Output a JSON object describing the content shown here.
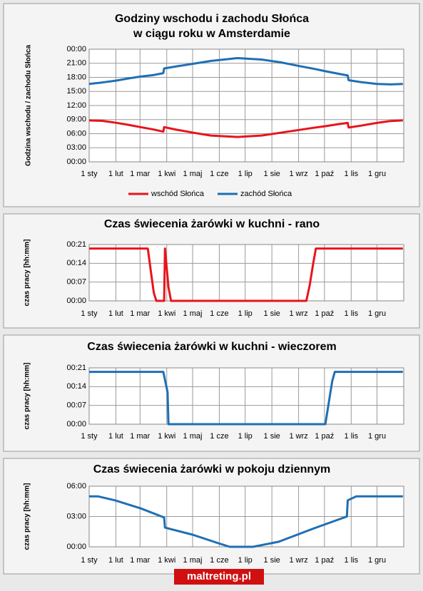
{
  "chart_data": [
    {
      "type": "line",
      "title": [
        "Godziny wschodu i zachodu Słońca",
        "w ciągu roku w Amsterdamie"
      ],
      "y_label": "Godzina wschodu  / zachodu Słońca",
      "xlim": [
        0,
        365
      ],
      "xticks": [
        {
          "value": 0,
          "label": "1 sty"
        },
        {
          "value": 31,
          "label": "1 lut"
        },
        {
          "value": 59,
          "label": "1 mar"
        },
        {
          "value": 90,
          "label": "1 kwi"
        },
        {
          "value": 120,
          "label": "1 maj"
        },
        {
          "value": 151,
          "label": "1 cze"
        },
        {
          "value": 181,
          "label": "1 lip"
        },
        {
          "value": 212,
          "label": "1 sie"
        },
        {
          "value": 243,
          "label": "1 wrz"
        },
        {
          "value": 273,
          "label": "1 paź"
        },
        {
          "value": 304,
          "label": "1 lis"
        },
        {
          "value": 334,
          "label": "1 gru"
        }
      ],
      "ylim": [
        0,
        24
      ],
      "yticks": [
        {
          "value": 0,
          "label": "00:00"
        },
        {
          "value": 3,
          "label": "03:00"
        },
        {
          "value": 6,
          "label": "06:00"
        },
        {
          "value": 9,
          "label": "09:00"
        },
        {
          "value": 12,
          "label": "12:00"
        },
        {
          "value": 15,
          "label": "15:00"
        },
        {
          "value": 18,
          "label": "18:00"
        },
        {
          "value": 21,
          "label": "21:00"
        },
        {
          "value": 24,
          "label": "00:00"
        }
      ],
      "grid": true,
      "legend": "bottom",
      "series": [
        {
          "name": "wschód Słońca",
          "color": "#e8141c",
          "x": [
            0,
            15,
            31,
            45,
            59,
            75,
            86,
            87,
            100,
            121,
            141,
            172,
            200,
            222,
            244,
            260,
            274,
            290,
            300,
            301,
            315,
            334,
            350,
            364
          ],
          "values": [
            8.83,
            8.73,
            8.33,
            7.9,
            7.42,
            6.88,
            6.42,
            7.4,
            6.9,
            6.2,
            5.6,
            5.3,
            5.6,
            6.2,
            6.8,
            7.25,
            7.6,
            8.05,
            8.3,
            7.3,
            7.7,
            8.3,
            8.7,
            8.83
          ]
        },
        {
          "name": "zachód Słońca",
          "color": "#1f6fb4",
          "x": [
            0,
            15,
            31,
            45,
            59,
            75,
            86,
            87,
            100,
            121,
            141,
            172,
            200,
            222,
            244,
            260,
            274,
            290,
            300,
            301,
            315,
            334,
            350,
            364
          ],
          "values": [
            16.6,
            16.9,
            17.3,
            17.75,
            18.15,
            18.5,
            18.9,
            19.9,
            20.3,
            20.9,
            21.5,
            22.1,
            21.8,
            21.2,
            20.4,
            19.85,
            19.3,
            18.75,
            18.4,
            17.4,
            17.0,
            16.6,
            16.5,
            16.6
          ]
        }
      ]
    },
    {
      "type": "line",
      "title": [
        "Czas świecenia żarówki w kuchni - rano"
      ],
      "y_label": "czas pracy [hh:mm]",
      "xlim": [
        0,
        365
      ],
      "xticks": [
        {
          "value": 0,
          "label": "1 sty"
        },
        {
          "value": 31,
          "label": "1 lut"
        },
        {
          "value": 59,
          "label": "1 mar"
        },
        {
          "value": 90,
          "label": "1 kwi"
        },
        {
          "value": 120,
          "label": "1 maj"
        },
        {
          "value": 151,
          "label": "1 cze"
        },
        {
          "value": 181,
          "label": "1 lip"
        },
        {
          "value": 212,
          "label": "1 sie"
        },
        {
          "value": 243,
          "label": "1 wrz"
        },
        {
          "value": 273,
          "label": "1 paź"
        },
        {
          "value": 304,
          "label": "1 lis"
        },
        {
          "value": 334,
          "label": "1 gru"
        }
      ],
      "ylim": [
        0,
        21
      ],
      "yticks": [
        {
          "value": 0,
          "label": "00:00"
        },
        {
          "value": 7,
          "label": "00:07"
        },
        {
          "value": 14,
          "label": "00:14"
        },
        {
          "value": 21,
          "label": "00:21"
        }
      ],
      "grid": true,
      "series": [
        {
          "color": "#e8141c",
          "x": [
            0,
            68,
            72,
            75,
            78,
            87,
            88,
            92,
            95,
            252,
            256,
            260,
            263,
            364
          ],
          "values": [
            19.5,
            19.5,
            10,
            3,
            0,
            0,
            19.5,
            5,
            0,
            0,
            6,
            14,
            19.5,
            19.5
          ]
        }
      ]
    },
    {
      "type": "line",
      "title": [
        "Czas świecenia żarówki w kuchni - wieczorem"
      ],
      "y_label": "czas pracy [hh:mm]",
      "xlim": [
        0,
        365
      ],
      "xticks": [
        {
          "value": 0,
          "label": "1 sty"
        },
        {
          "value": 31,
          "label": "1 lut"
        },
        {
          "value": 59,
          "label": "1 mar"
        },
        {
          "value": 90,
          "label": "1 kwi"
        },
        {
          "value": 120,
          "label": "1 maj"
        },
        {
          "value": 151,
          "label": "1 cze"
        },
        {
          "value": 181,
          "label": "1 lip"
        },
        {
          "value": 212,
          "label": "1 sie"
        },
        {
          "value": 243,
          "label": "1 wrz"
        },
        {
          "value": 273,
          "label": "1 paź"
        },
        {
          "value": 304,
          "label": "1 lis"
        },
        {
          "value": 334,
          "label": "1 gru"
        }
      ],
      "ylim": [
        0,
        21
      ],
      "yticks": [
        {
          "value": 0,
          "label": "00:00"
        },
        {
          "value": 7,
          "label": "00:07"
        },
        {
          "value": 14,
          "label": "00:14"
        },
        {
          "value": 21,
          "label": "00:21"
        }
      ],
      "grid": true,
      "series": [
        {
          "color": "#1f6fb4",
          "x": [
            0,
            86,
            89,
            91,
            92,
            274,
            278,
            282,
            285,
            364
          ],
          "values": [
            19.5,
            19.5,
            15,
            12,
            0,
            0,
            8,
            16,
            19.5,
            19.5
          ]
        }
      ]
    },
    {
      "type": "line",
      "title": [
        "Czas świecenia żarówki w pokoju dziennym"
      ],
      "y_label": "czas pracy [hh:mm]",
      "xlim": [
        0,
        365
      ],
      "xticks": [
        {
          "value": 0,
          "label": "1 sty"
        },
        {
          "value": 31,
          "label": "1 lut"
        },
        {
          "value": 59,
          "label": "1 mar"
        },
        {
          "value": 90,
          "label": "1 kwi"
        },
        {
          "value": 120,
          "label": "1 maj"
        },
        {
          "value": 151,
          "label": "1 cze"
        },
        {
          "value": 181,
          "label": "1 lip"
        },
        {
          "value": 212,
          "label": "1 sie"
        },
        {
          "value": 243,
          "label": "1 wrz"
        },
        {
          "value": 273,
          "label": "1 paź"
        },
        {
          "value": 304,
          "label": "1 lis"
        },
        {
          "value": 334,
          "label": "1 gru"
        }
      ],
      "ylim": [
        0,
        6
      ],
      "yticks": [
        {
          "value": 0,
          "label": "00:00"
        },
        {
          "value": 3,
          "label": "03:00"
        },
        {
          "value": 6,
          "label": "06:00"
        }
      ],
      "grid": true,
      "series": [
        {
          "color": "#1f6fb4",
          "x": [
            0,
            10,
            30,
            60,
            87,
            88,
            120,
            150,
            163,
            190,
            220,
            260,
            299,
            300,
            310,
            364
          ],
          "values": [
            5.0,
            5.0,
            4.6,
            3.8,
            2.9,
            1.9,
            1.2,
            0.35,
            0,
            0,
            0.5,
            1.8,
            3.0,
            4.6,
            5.0,
            5.0
          ]
        }
      ]
    }
  ],
  "footer": "maltreting.pl"
}
